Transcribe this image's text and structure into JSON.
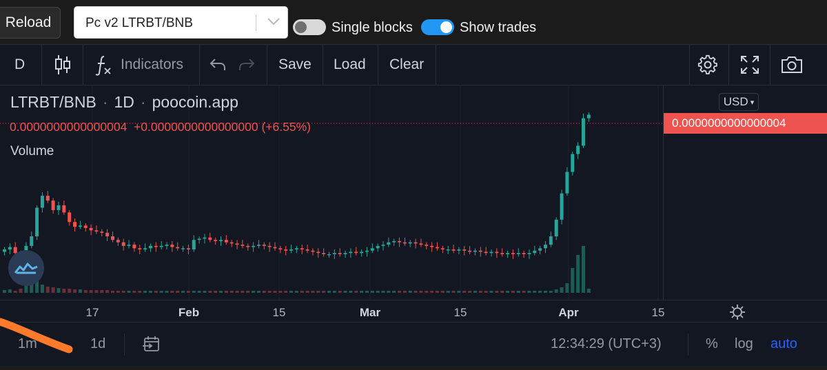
{
  "top": {
    "reload_label": "Reload",
    "pair_value": "Pc v2 LTRBT/BNB",
    "single_blocks_label": "Single blocks",
    "single_blocks_on": false,
    "show_trades_label": "Show trades",
    "show_trades_on": true
  },
  "toolbar": {
    "interval": "D",
    "indicators_label": "Indicators",
    "save_label": "Save",
    "load_label": "Load",
    "clear_label": "Clear"
  },
  "legend": {
    "symbol": "LTRBT/BNB",
    "interval": "1D",
    "source": "poocoin.app",
    "dot": "·",
    "last_price": "0.0000000000000004",
    "change": "+0.0000000000000000 (+6.55%)",
    "volume_label": "Volume"
  },
  "price_scale": {
    "currency_button": "USD",
    "last_price_tag": "0.0000000000000004"
  },
  "time_axis": {
    "ticks": [
      {
        "label": "17",
        "bold": false
      },
      {
        "label": "Feb",
        "bold": true
      },
      {
        "label": "15",
        "bold": false
      },
      {
        "label": "Mar",
        "bold": true
      },
      {
        "label": "15",
        "bold": false
      },
      {
        "label": "Apr",
        "bold": true
      },
      {
        "label": "15",
        "bold": false
      }
    ]
  },
  "bottom": {
    "range_1m": "1m",
    "range_1d": "1d",
    "clock": "12:34:29 (UTC+3)",
    "percent_label": "%",
    "log_label": "log",
    "auto_label": "auto"
  },
  "colors": {
    "up": "#26a69a",
    "down": "#ef5350",
    "accent": "#2962ff",
    "toggle_on": "#2196f3"
  },
  "chart_data": {
    "type": "candlestick",
    "symbol": "LTRBT/BNB",
    "interval": "1D",
    "source": "poocoin.app",
    "x_ticks": [
      "17",
      "Feb",
      "15",
      "Mar",
      "15",
      "Apr",
      "15"
    ],
    "last_price": "0.0000000000000004",
    "change_percent": "+6.55%",
    "price_index": [
      55,
      57,
      52,
      48,
      58,
      66,
      90,
      100,
      96,
      88,
      92,
      86,
      78,
      74,
      75,
      73,
      71,
      70,
      69,
      66,
      63,
      61,
      58,
      59,
      56,
      55,
      56,
      58,
      57,
      58,
      59,
      57,
      56,
      56,
      55,
      63,
      64,
      65,
      63,
      62,
      63,
      61,
      60,
      59,
      58,
      57,
      58,
      59,
      58,
      57,
      56,
      55,
      54,
      55,
      56,
      55,
      54,
      53,
      52,
      51,
      51,
      52,
      51,
      52,
      53,
      52,
      53,
      54,
      56,
      58,
      59,
      61,
      62,
      61,
      60,
      61,
      60,
      59,
      58,
      57,
      56,
      55,
      55,
      54,
      55,
      54,
      53,
      54,
      53,
      52,
      53,
      52,
      51,
      52,
      51,
      52,
      51,
      52,
      54,
      56,
      59,
      66,
      80,
      102,
      120,
      135,
      142,
      165,
      168
    ],
    "volume_index": [
      4,
      5,
      3,
      6,
      20,
      30,
      22,
      12,
      9,
      8,
      7,
      6,
      6,
      5,
      5,
      4,
      4,
      4,
      4,
      4,
      3,
      3,
      3,
      3,
      3,
      3,
      3,
      3,
      3,
      3,
      3,
      3,
      3,
      3,
      3,
      3,
      3,
      3,
      3,
      3,
      3,
      3,
      3,
      3,
      3,
      3,
      3,
      3,
      3,
      3,
      3,
      3,
      3,
      3,
      3,
      3,
      3,
      3,
      3,
      3,
      3,
      3,
      3,
      3,
      3,
      3,
      3,
      3,
      3,
      3,
      3,
      3,
      3,
      3,
      3,
      3,
      3,
      3,
      3,
      3,
      3,
      3,
      3,
      3,
      3,
      3,
      3,
      3,
      3,
      3,
      3,
      3,
      3,
      3,
      3,
      3,
      3,
      3,
      3,
      3,
      3,
      3,
      5,
      8,
      14,
      36,
      55,
      68,
      6
    ]
  }
}
